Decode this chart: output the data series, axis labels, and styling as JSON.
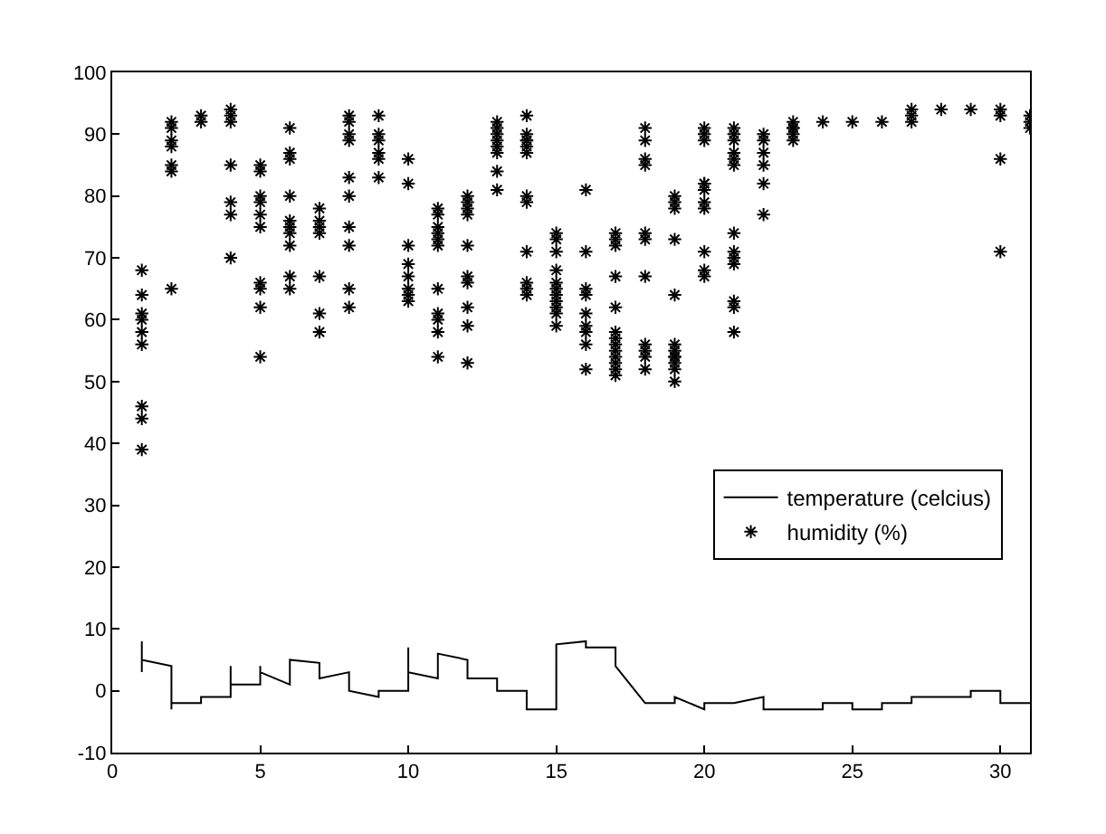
{
  "chart_data": {
    "type": "scatter",
    "xlim": [
      0,
      31
    ],
    "xticks": [
      0,
      5,
      10,
      15,
      20,
      25,
      30
    ],
    "ylim": [
      -10,
      100
    ],
    "yticks": [
      -10,
      0,
      10,
      20,
      30,
      40,
      50,
      60,
      70,
      80,
      90,
      100
    ],
    "legend": "right",
    "series": [
      {
        "name": "temperature (celcius)",
        "type": "line",
        "color": "#000000",
        "marker": "none",
        "line_style": "solid",
        "x": [
          1,
          1,
          1,
          2,
          2,
          2,
          3,
          3,
          4,
          4,
          4,
          5,
          5,
          5,
          6,
          6,
          7,
          7,
          8,
          8,
          9,
          9,
          10,
          10,
          10,
          11,
          11,
          12,
          12,
          13,
          13,
          14,
          14,
          15,
          15,
          16,
          16,
          17,
          17,
          18,
          19,
          19,
          20,
          20,
          21,
          22,
          22,
          24,
          24,
          25,
          25,
          26,
          26,
          27,
          27,
          29,
          29,
          30,
          30,
          31
        ],
        "values": [
          8,
          3,
          5,
          4,
          -3,
          -2,
          -2,
          -1,
          -1,
          4,
          1,
          1,
          4,
          3,
          1,
          5,
          4.5,
          2,
          3,
          0,
          -1,
          0,
          0,
          7,
          3,
          2,
          6,
          5,
          2,
          2,
          0,
          0,
          -3,
          -3,
          7.5,
          8,
          7,
          7,
          4,
          -2,
          -2,
          -1,
          -3,
          -2,
          -2,
          -1,
          -3,
          -3,
          -2,
          -2,
          -3,
          -3,
          -2,
          -2,
          -1,
          -1,
          0,
          0,
          -2,
          -2
        ]
      },
      {
        "name": "humidity (%)",
        "color": "#000000",
        "marker": "cross",
        "x": [
          1,
          1,
          1,
          1,
          1,
          1,
          1,
          1,
          1,
          2,
          2,
          2,
          2,
          2,
          2,
          2,
          3,
          3,
          4,
          4,
          4,
          4,
          4,
          4,
          4,
          5,
          5,
          5,
          5,
          5,
          5,
          5,
          5,
          5,
          5,
          6,
          6,
          6,
          6,
          6,
          6,
          6,
          6,
          6,
          6,
          7,
          7,
          7,
          7,
          7,
          7,
          7,
          8,
          8,
          8,
          8,
          8,
          8,
          8,
          8,
          8,
          8,
          9,
          9,
          9,
          9,
          9,
          9,
          10,
          10,
          10,
          10,
          10,
          10,
          10,
          10,
          11,
          11,
          11,
          11,
          11,
          11,
          11,
          11,
          11,
          11,
          11,
          12,
          12,
          12,
          12,
          12,
          12,
          12,
          12,
          12,
          12,
          13,
          13,
          13,
          13,
          13,
          13,
          13,
          13,
          14,
          14,
          14,
          14,
          14,
          14,
          14,
          14,
          14,
          14,
          14,
          14,
          15,
          15,
          15,
          15,
          15,
          15,
          15,
          15,
          15,
          15,
          15,
          16,
          16,
          16,
          16,
          16,
          16,
          16,
          16,
          16,
          17,
          17,
          17,
          17,
          17,
          17,
          17,
          17,
          17,
          17,
          17,
          17,
          17,
          18,
          18,
          18,
          18,
          18,
          18,
          18,
          18,
          18,
          18,
          18,
          19,
          19,
          19,
          19,
          19,
          19,
          19,
          19,
          19,
          19,
          19,
          19,
          20,
          20,
          20,
          20,
          20,
          20,
          20,
          20,
          20,
          20,
          20,
          21,
          21,
          21,
          21,
          21,
          21,
          21,
          21,
          21,
          21,
          21,
          21,
          21,
          22,
          22,
          22,
          22,
          22,
          22,
          23,
          23,
          23,
          23,
          23,
          24,
          25,
          26,
          27,
          27,
          27,
          28,
          29,
          30,
          30,
          30,
          30,
          31,
          31,
          31
        ],
        "values": [
          68,
          64,
          61,
          60,
          58,
          56,
          46,
          44,
          39,
          92,
          91,
          89,
          88,
          85,
          84,
          65,
          93,
          92,
          94,
          93,
          92,
          85,
          79,
          77,
          70,
          85,
          84,
          80,
          79,
          77,
          75,
          66,
          65,
          62,
          54,
          91,
          87,
          86,
          80,
          76,
          75,
          74,
          72,
          67,
          65,
          78,
          76,
          75,
          74,
          67,
          61,
          58,
          93,
          92,
          90,
          89,
          83,
          80,
          75,
          72,
          65,
          62,
          93,
          90,
          89,
          87,
          86,
          83,
          86,
          82,
          72,
          69,
          67,
          65,
          64,
          63,
          78,
          77,
          75,
          74,
          73,
          72,
          65,
          61,
          60,
          58,
          54,
          80,
          79,
          78,
          77,
          72,
          67,
          66,
          62,
          59,
          53,
          92,
          91,
          90,
          89,
          88,
          87,
          84,
          81,
          93,
          90,
          89,
          89,
          88,
          87,
          80,
          79,
          71,
          66,
          65,
          64,
          74,
          73,
          71,
          68,
          66,
          65,
          64,
          63,
          62,
          61,
          59,
          81,
          71,
          65,
          64,
          61,
          59,
          58,
          56,
          52,
          74,
          73,
          72,
          67,
          62,
          58,
          57,
          56,
          55,
          54,
          53,
          52,
          51,
          91,
          89,
          86,
          85,
          74,
          73,
          67,
          56,
          55,
          54,
          52,
          80,
          79,
          78,
          73,
          64,
          56,
          55,
          54,
          54,
          53,
          52,
          50,
          91,
          90,
          89,
          82,
          82,
          81,
          79,
          78,
          71,
          68,
          67,
          91,
          90,
          89,
          87,
          86,
          85,
          74,
          71,
          70,
          69,
          63,
          62,
          58,
          90,
          89,
          87,
          85,
          82,
          77,
          92,
          91,
          91,
          90,
          89,
          92,
          92,
          92,
          94,
          93,
          92,
          94,
          94,
          94,
          93,
          86,
          71,
          93,
          92,
          91
        ]
      }
    ]
  }
}
